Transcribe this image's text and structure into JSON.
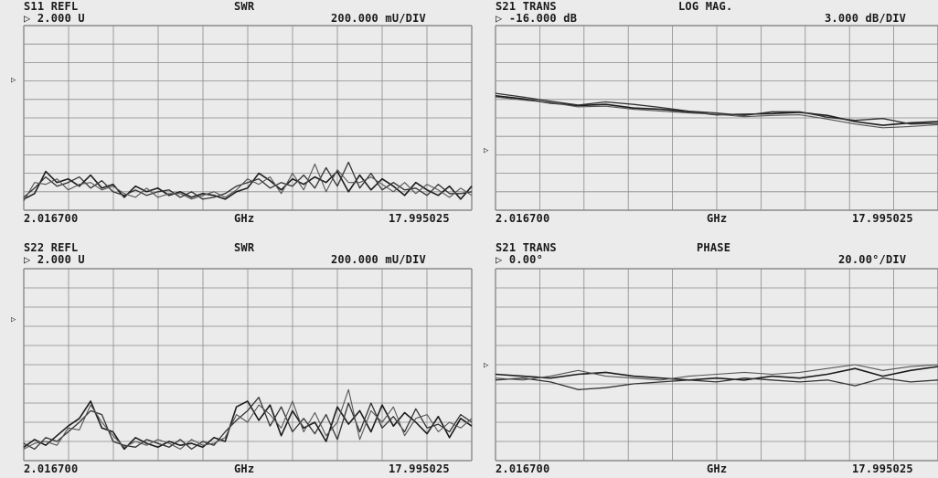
{
  "chart_data": [
    {
      "type": "line",
      "parameter": "S11 REFL",
      "format": "SWR",
      "reference": "2.000 U",
      "scale": "200.000 mU/DIV",
      "x_start": "2.016700",
      "x_unit": "GHz",
      "x_stop": "17.995025",
      "grid": true,
      "divisions": 10,
      "y_per_div": 0.2,
      "ref_value": 2.0,
      "ref_division": 4,
      "x_range_ghz": [
        2.0167,
        17.995025
      ],
      "ylim": [
        1.0,
        3.0
      ],
      "series": [
        {
          "x": [
            2.0167,
            2.4,
            2.8,
            3.2,
            3.6,
            4.0,
            4.4,
            4.8,
            5.2,
            5.6,
            6.0,
            6.4,
            6.8,
            7.2,
            7.6,
            8.0,
            8.4,
            8.8,
            9.2,
            9.6,
            10.0,
            10.4,
            10.8,
            11.2,
            11.6,
            12.0,
            12.4,
            12.8,
            13.2,
            13.6,
            14.0,
            14.4,
            14.8,
            15.2,
            15.6,
            16.0,
            16.4,
            16.8,
            17.2,
            17.6,
            17.995
          ],
          "y": [
            1.12,
            1.18,
            1.42,
            1.3,
            1.34,
            1.26,
            1.38,
            1.24,
            1.28,
            1.14,
            1.26,
            1.2,
            1.24,
            1.16,
            1.2,
            1.14,
            1.18,
            1.16,
            1.12,
            1.2,
            1.24,
            1.4,
            1.32,
            1.22,
            1.34,
            1.28,
            1.36,
            1.3,
            1.42,
            1.2,
            1.38,
            1.22,
            1.34,
            1.26,
            1.16,
            1.3,
            1.22,
            1.16,
            1.26,
            1.12,
            1.26
          ]
        },
        {
          "x": [
            2.0167,
            2.4,
            2.8,
            3.2,
            3.6,
            4.0,
            4.4,
            4.8,
            5.2,
            5.6,
            6.0,
            6.4,
            6.8,
            7.2,
            7.6,
            8.0,
            8.4,
            8.8,
            9.2,
            9.6,
            10.0,
            10.4,
            10.8,
            11.2,
            11.6,
            12.0,
            12.4,
            12.8,
            13.2,
            13.6,
            14.0,
            14.4,
            14.8,
            15.2,
            15.6,
            16.0,
            16.4,
            16.8,
            17.2,
            17.6,
            17.995
          ],
          "y": [
            1.14,
            1.24,
            1.36,
            1.26,
            1.3,
            1.36,
            1.24,
            1.32,
            1.2,
            1.16,
            1.22,
            1.16,
            1.2,
            1.22,
            1.14,
            1.2,
            1.12,
            1.14,
            1.18,
            1.26,
            1.3,
            1.34,
            1.24,
            1.3,
            1.26,
            1.38,
            1.24,
            1.46,
            1.26,
            1.52,
            1.24,
            1.4,
            1.22,
            1.3,
            1.22,
            1.24,
            1.16,
            1.28,
            1.18,
            1.18,
            1.2
          ]
        },
        {
          "x": [
            2.0167,
            2.4,
            2.8,
            3.2,
            3.6,
            4.0,
            4.4,
            4.8,
            5.2,
            5.6,
            6.0,
            6.4,
            6.8,
            7.2,
            7.6,
            8.0,
            8.4,
            8.8,
            9.2,
            9.6,
            10.0,
            10.4,
            10.8,
            11.2,
            11.6,
            12.0,
            12.4,
            12.8,
            13.2,
            13.6,
            14.0,
            14.4,
            14.8,
            15.2,
            15.6,
            16.0,
            16.4,
            16.8,
            17.2,
            17.6,
            17.995
          ],
          "y": [
            1.1,
            1.3,
            1.28,
            1.34,
            1.22,
            1.28,
            1.3,
            1.22,
            1.26,
            1.18,
            1.14,
            1.24,
            1.14,
            1.18,
            1.18,
            1.12,
            1.16,
            1.2,
            1.14,
            1.22,
            1.34,
            1.28,
            1.36,
            1.18,
            1.4,
            1.22,
            1.5,
            1.2,
            1.44,
            1.3,
            1.3,
            1.36,
            1.28,
            1.2,
            1.3,
            1.18,
            1.28,
            1.22,
            1.14,
            1.24,
            1.16
          ]
        }
      ]
    },
    {
      "type": "line",
      "parameter": "S21 TRANS",
      "format": "LOG MAG.",
      "reference": "-16.000 dB",
      "scale": "3.000 dB/DIV",
      "x_start": "2.016700",
      "x_unit": "GHz",
      "x_stop": "17.995025",
      "grid": true,
      "divisions": 10,
      "y_per_div": 3.0,
      "ref_value": -16.0,
      "ref_division": 4,
      "x_range_ghz": [
        2.0167,
        17.995025
      ],
      "ylim": [
        -28.0,
        2.0
      ],
      "series": [
        {
          "x": [
            2.0167,
            3.0,
            4.0,
            5.0,
            6.0,
            7.0,
            8.0,
            9.0,
            10.0,
            11.0,
            12.0,
            13.0,
            14.0,
            15.0,
            16.0,
            17.0,
            17.995
          ],
          "y": [
            -9.4,
            -9.9,
            -10.6,
            -11.0,
            -10.8,
            -11.4,
            -11.6,
            -12.0,
            -12.5,
            -12.4,
            -12.3,
            -12.1,
            -12.6,
            -13.6,
            -14.2,
            -13.8,
            -13.6
          ]
        },
        {
          "x": [
            2.0167,
            3.0,
            4.0,
            5.0,
            6.0,
            7.0,
            8.0,
            9.0,
            10.0,
            11.0,
            12.0,
            13.0,
            14.0,
            15.0,
            16.0,
            17.0,
            17.995
          ],
          "y": [
            -9.0,
            -9.6,
            -10.3,
            -10.9,
            -10.4,
            -10.8,
            -11.3,
            -11.9,
            -12.2,
            -12.6,
            -12.0,
            -12.0,
            -12.9,
            -13.4,
            -13.1,
            -14.0,
            -13.9
          ]
        },
        {
          "x": [
            2.0167,
            3.0,
            4.0,
            5.0,
            6.0,
            7.0,
            8.0,
            9.0,
            10.0,
            11.0,
            12.0,
            13.0,
            14.0,
            15.0,
            16.0,
            17.0,
            17.995
          ],
          "y": [
            -9.6,
            -10.1,
            -10.5,
            -11.2,
            -11.1,
            -11.6,
            -11.9,
            -12.2,
            -12.4,
            -12.8,
            -12.6,
            -12.5,
            -13.2,
            -14.0,
            -14.6,
            -14.4,
            -14.1
          ]
        }
      ]
    },
    {
      "type": "line",
      "parameter": "S22 REFL",
      "format": "SWR",
      "reference": "2.000 U",
      "scale": "200.000 mU/DIV",
      "x_start": "2.016700",
      "x_unit": "GHz",
      "x_stop": "17.995025",
      "grid": true,
      "divisions": 10,
      "y_per_div": 0.2,
      "ref_value": 2.0,
      "ref_division": 4,
      "x_range_ghz": [
        2.0167,
        17.995025
      ],
      "ylim": [
        1.0,
        3.0
      ],
      "series": [
        {
          "x": [
            2.0167,
            2.4,
            2.8,
            3.2,
            3.6,
            4.0,
            4.4,
            4.8,
            5.2,
            5.6,
            6.0,
            6.4,
            6.8,
            7.2,
            7.6,
            8.0,
            8.4,
            8.8,
            9.2,
            9.6,
            10.0,
            10.4,
            10.8,
            11.2,
            11.6,
            12.0,
            12.4,
            12.8,
            13.2,
            13.6,
            14.0,
            14.4,
            14.8,
            15.2,
            15.6,
            16.0,
            16.4,
            16.8,
            17.2,
            17.6,
            17.995
          ],
          "y": [
            1.14,
            1.22,
            1.16,
            1.26,
            1.36,
            1.44,
            1.62,
            1.34,
            1.3,
            1.12,
            1.24,
            1.18,
            1.14,
            1.2,
            1.16,
            1.18,
            1.14,
            1.24,
            1.2,
            1.56,
            1.62,
            1.42,
            1.58,
            1.26,
            1.52,
            1.34,
            1.4,
            1.2,
            1.56,
            1.38,
            1.52,
            1.3,
            1.58,
            1.36,
            1.5,
            1.4,
            1.28,
            1.46,
            1.24,
            1.44,
            1.36
          ]
        },
        {
          "x": [
            2.0167,
            2.4,
            2.8,
            3.2,
            3.6,
            4.0,
            4.4,
            4.8,
            5.2,
            5.6,
            6.0,
            6.4,
            6.8,
            7.2,
            7.6,
            8.0,
            8.4,
            8.8,
            9.2,
            9.6,
            10.0,
            10.4,
            10.8,
            11.2,
            11.6,
            12.0,
            12.4,
            12.8,
            13.2,
            13.6,
            14.0,
            14.4,
            14.8,
            15.2,
            15.6,
            16.0,
            16.4,
            16.8,
            17.2,
            17.6,
            17.995
          ],
          "y": [
            1.18,
            1.12,
            1.24,
            1.2,
            1.3,
            1.4,
            1.52,
            1.48,
            1.2,
            1.16,
            1.14,
            1.22,
            1.18,
            1.14,
            1.22,
            1.12,
            1.2,
            1.16,
            1.3,
            1.42,
            1.52,
            1.66,
            1.36,
            1.56,
            1.3,
            1.44,
            1.28,
            1.48,
            1.22,
            1.6,
            1.3,
            1.6,
            1.34,
            1.46,
            1.3,
            1.54,
            1.34,
            1.38,
            1.3,
            1.48,
            1.4
          ]
        },
        {
          "x": [
            2.0167,
            2.4,
            2.8,
            3.2,
            3.6,
            4.0,
            4.4,
            4.8,
            5.2,
            5.6,
            6.0,
            6.4,
            6.8,
            7.2,
            7.6,
            8.0,
            8.4,
            8.8,
            9.2,
            9.6,
            10.0,
            10.4,
            10.8,
            11.2,
            11.6,
            12.0,
            12.4,
            12.8,
            13.2,
            13.6,
            14.0,
            14.4,
            14.8,
            15.2,
            15.6,
            16.0,
            16.4,
            16.8,
            17.2,
            17.6,
            17.995
          ],
          "y": [
            1.12,
            1.18,
            1.2,
            1.16,
            1.34,
            1.32,
            1.58,
            1.4,
            1.26,
            1.14,
            1.2,
            1.16,
            1.22,
            1.18,
            1.12,
            1.22,
            1.16,
            1.18,
            1.24,
            1.48,
            1.4,
            1.58,
            1.48,
            1.34,
            1.62,
            1.3,
            1.5,
            1.26,
            1.4,
            1.74,
            1.22,
            1.52,
            1.4,
            1.56,
            1.26,
            1.44,
            1.48,
            1.3,
            1.4,
            1.34,
            1.44
          ]
        }
      ]
    },
    {
      "type": "line",
      "parameter": "S21 TRANS",
      "format": "PHASE",
      "reference": "0.00°",
      "scale": "20.00°/DIV",
      "x_start": "2.016700",
      "x_unit": "GHz",
      "x_stop": "17.995025",
      "grid": true,
      "divisions": 10,
      "y_per_div": 20.0,
      "ref_value": 0.0,
      "ref_division": 4,
      "x_range_ghz": [
        2.0167,
        17.995025
      ],
      "ylim": [
        -80.0,
        120.0
      ],
      "series": [
        {
          "x": [
            2.0167,
            3.0,
            4.0,
            5.0,
            6.0,
            7.0,
            8.0,
            9.0,
            10.0,
            11.0,
            12.0,
            13.0,
            14.0,
            15.0,
            16.0,
            17.0,
            17.995
          ],
          "y": [
            10,
            8,
            6,
            10,
            12,
            8,
            6,
            4,
            6,
            4,
            8,
            6,
            10,
            16,
            8,
            14,
            18
          ]
        },
        {
          "x": [
            2.0167,
            3.0,
            4.0,
            5.0,
            6.0,
            7.0,
            8.0,
            9.0,
            10.0,
            11.0,
            12.0,
            13.0,
            14.0,
            15.0,
            16.0,
            17.0,
            17.995
          ],
          "y": [
            4,
            6,
            2,
            -6,
            -4,
            0,
            2,
            4,
            2,
            6,
            4,
            2,
            4,
            -2,
            6,
            2,
            4
          ]
        },
        {
          "x": [
            2.0167,
            3.0,
            4.0,
            5.0,
            6.0,
            7.0,
            8.0,
            9.0,
            10.0,
            11.0,
            12.0,
            13.0,
            14.0,
            15.0,
            16.0,
            17.0,
            17.995
          ],
          "y": [
            6,
            4,
            8,
            14,
            8,
            6,
            4,
            8,
            10,
            12,
            10,
            12,
            16,
            20,
            14,
            18,
            20
          ]
        }
      ]
    }
  ]
}
